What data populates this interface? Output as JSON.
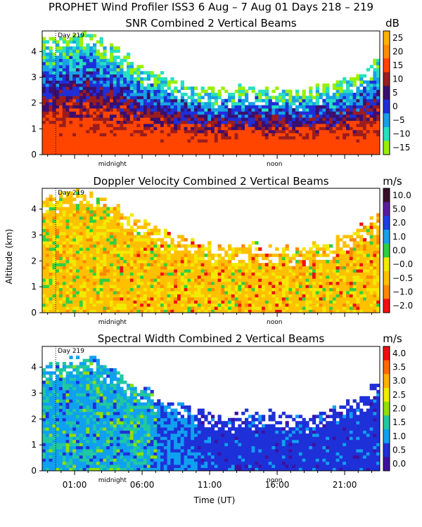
{
  "header": {
    "title": "PROPHET Wind Profiler ISS3   6 Aug –  7 Aug 01 Days 218 – 219"
  },
  "x_axis": {
    "label": "Time (UT)",
    "range_hours": [
      -1.4,
      23.6
    ],
    "ticks": [
      {
        "h": 1,
        "label": "01:00"
      },
      {
        "h": 6,
        "label": "06:00"
      },
      {
        "h": 11,
        "label": "11:00"
      },
      {
        "h": 16,
        "label": "16:00"
      },
      {
        "h": 21,
        "label": "21:00"
      }
    ],
    "inner_markers": [
      {
        "h": 3.8,
        "label": "midnight"
      },
      {
        "h": 15.8,
        "label": "noon"
      }
    ]
  },
  "y_axis": {
    "label": "Altitude (km)",
    "range_km": [
      0,
      4.8
    ],
    "ticks": [
      0,
      1,
      2,
      3,
      4
    ]
  },
  "day_marker": {
    "label": "Day 219",
    "h": -0.4
  },
  "chart_data": [
    {
      "type": "heatmap",
      "title": "SNR Combined 2 Vertical Beams",
      "unit": "dB",
      "colorbar": {
        "labels": [
          "25",
          "20",
          "15",
          "10",
          "5",
          "0",
          "−5",
          "−10",
          "−15"
        ],
        "colors": [
          "#ffb300",
          "#ff8c00",
          "#ff4500",
          "#9b1d1d",
          "#3a0f6e",
          "#1e2fd8",
          "#18a0e8",
          "#28e0c0",
          "#98f000"
        ]
      },
      "ylim": [
        0,
        4.8
      ]
    },
    {
      "type": "heatmap",
      "title": "Doppler Velocity Combined 2 Vertical Beams",
      "unit": "m/s",
      "colorbar": {
        "labels": [
          "10.0",
          "5.0",
          "2.0",
          "1.0",
          "0.0",
          "−0.0",
          "−0.5",
          "−1.0",
          "−2.0"
        ],
        "colors": [
          "#3a0f2a",
          "#5a1aa0",
          "#1e40e0",
          "#18a0e8",
          "#30d040",
          "#f2ea00",
          "#ffc000",
          "#ff8800",
          "#ee1010"
        ]
      },
      "ylim": [
        0,
        4.8
      ]
    },
    {
      "type": "heatmap",
      "title": "Spectral Width Combined 2 Vertical Beams",
      "unit": "m/s",
      "colorbar": {
        "labels": [
          "4.0",
          "3.5",
          "3.0",
          "2.5",
          "2.0",
          "1.5",
          "1.0",
          "0.5",
          "0.0"
        ],
        "colors": [
          "#ee1010",
          "#ff6a00",
          "#ffb000",
          "#f2ea00",
          "#90e000",
          "#20c8a0",
          "#10a0f0",
          "#1e30d8",
          "#4010a0"
        ]
      },
      "ylim": [
        0,
        4.8
      ]
    }
  ]
}
